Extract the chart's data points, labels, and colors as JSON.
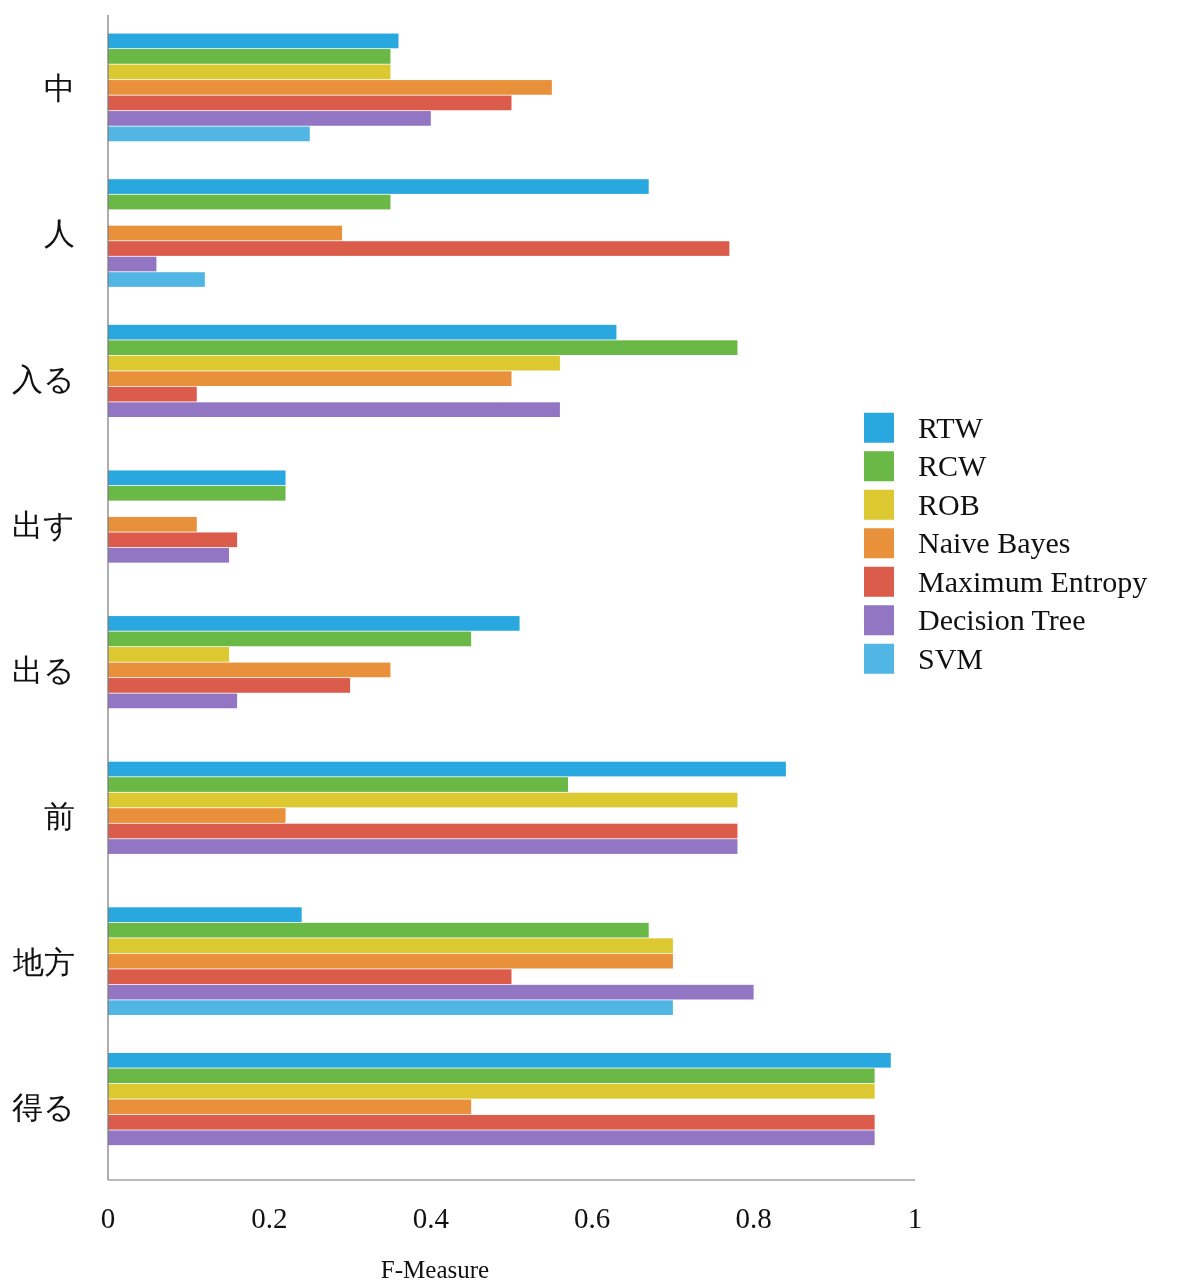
{
  "chart_data": {
    "type": "bar",
    "orientation": "horizontal",
    "xlabel": "F-Measure",
    "categories": [
      "中",
      "人",
      "入る",
      "出す",
      "出る",
      "前",
      "地方",
      "得る"
    ],
    "xlim": [
      0,
      1
    ],
    "xticks": [
      0,
      0.2,
      0.4,
      0.6,
      0.8,
      1
    ],
    "legend": "right",
    "series": [
      {
        "name": "RTW",
        "color": "#29a8e0",
        "values": [
          0.36,
          0.67,
          0.63,
          0.22,
          0.51,
          0.84,
          0.24,
          0.97
        ]
      },
      {
        "name": "RCW",
        "color": "#6ab845",
        "values": [
          0.35,
          0.35,
          0.78,
          0.22,
          0.45,
          0.57,
          0.67,
          0.95
        ]
      },
      {
        "name": "ROB",
        "color": "#dcc831",
        "values": [
          0.35,
          null,
          0.56,
          null,
          0.15,
          0.78,
          0.7,
          0.95
        ]
      },
      {
        "name": "Naive Bayes",
        "color": "#e8903a",
        "values": [
          0.55,
          0.29,
          0.5,
          0.11,
          0.35,
          0.22,
          0.7,
          0.45
        ]
      },
      {
        "name": "Maximum Entropy",
        "color": "#dc5c4c",
        "values": [
          0.5,
          0.77,
          0.11,
          0.16,
          0.3,
          0.78,
          0.5,
          0.95
        ]
      },
      {
        "name": "Decision Tree",
        "color": "#9276c4",
        "values": [
          0.4,
          0.06,
          0.56,
          0.15,
          0.16,
          0.78,
          0.8,
          0.95
        ]
      },
      {
        "name": "SVM",
        "color": "#52b6e4",
        "values": [
          0.25,
          0.12,
          null,
          null,
          null,
          null,
          0.7,
          null
        ]
      }
    ]
  }
}
